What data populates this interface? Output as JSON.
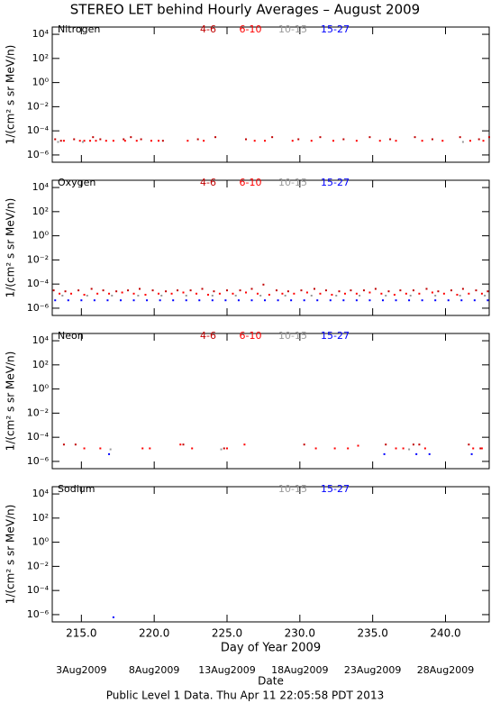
{
  "title": "STEREO LET behind Hourly Averages – August 2009",
  "footer": "Public Level 1 Data. Thu Apr 11 22:05:58 PDT 2013",
  "chart_data": [
    {
      "type": "scatter",
      "title": "Nitrogen",
      "y_label": "1/(cm² s sr MeV/n)",
      "log_y": true,
      "xlim": [
        213,
        243
      ],
      "ylim": [
        2.5e-07,
        40000
      ],
      "xticks": [
        {
          "value": 215,
          "label": "215.0"
        },
        {
          "value": 220,
          "label": "220.0"
        },
        {
          "value": 225,
          "label": "225.0"
        },
        {
          "value": 230,
          "label": "230.0"
        },
        {
          "value": 235,
          "label": "235.0"
        },
        {
          "value": 240,
          "label": "240.0"
        }
      ],
      "yticks": [
        {
          "value": 10000,
          "label": "10⁴"
        },
        {
          "value": 100,
          "label": "10²"
        },
        {
          "value": 1,
          "label": "10⁰"
        },
        {
          "value": 0.01,
          "label": "10⁻²"
        },
        {
          "value": 0.0001,
          "label": "10⁻⁴"
        },
        {
          "value": 1e-06,
          "label": "10⁻⁶"
        }
      ],
      "series": [
        {
          "name": "4-6",
          "color": "#c00000",
          "x": [
            213.2,
            213.6,
            214.5,
            215.8,
            216.3,
            217.9,
            218.4,
            219.1,
            220.6,
            223.0,
            224.2,
            226.3,
            228.1,
            229.9,
            231.4,
            233.0,
            234.8,
            236.2,
            237.9,
            239.1,
            241.0,
            242.3,
            243.0
          ],
          "values": [
            2e-05,
            1.5e-05,
            2e-05,
            3e-05,
            2e-05,
            2e-05,
            3e-05,
            2e-05,
            1.5e-05,
            2e-05,
            3e-05,
            2e-05,
            3e-05,
            2e-05,
            3e-05,
            2e-05,
            3e-05,
            2e-05,
            3e-05,
            2e-05,
            3e-05,
            2e-05,
            3e-05
          ]
        },
        {
          "name": "6-10",
          "color": "#ff0000",
          "x": [
            213.8,
            214.9,
            215.2,
            215.6,
            216.0,
            216.7,
            217.2,
            218.0,
            218.8,
            219.8,
            220.3,
            222.3,
            223.4,
            226.9,
            227.6,
            229.5,
            230.8,
            232.3,
            233.9,
            235.5,
            236.6,
            238.4,
            239.8,
            241.7,
            242.6
          ],
          "values": [
            1.5e-05,
            1.5e-05,
            1.5e-05,
            1.5e-05,
            1.5e-05,
            1.5e-05,
            1.5e-05,
            1.5e-05,
            1.5e-05,
            1.5e-05,
            1.5e-05,
            1.5e-05,
            1.5e-05,
            1.5e-05,
            1.5e-05,
            1.5e-05,
            1.5e-05,
            1.5e-05,
            1.5e-05,
            1.5e-05,
            1.5e-05,
            1.5e-05,
            1.5e-05,
            1.5e-05,
            1.5e-05
          ]
        },
        {
          "name": "10-15",
          "color": "#999999",
          "x": [
            213.4,
            215.1,
            241.2
          ],
          "values": [
            1.2e-05,
            1.2e-05,
            1.2e-05
          ]
        },
        {
          "name": "15-27",
          "color": "#0000ff",
          "x": [],
          "values": []
        }
      ]
    },
    {
      "type": "scatter",
      "title": "Oxygen",
      "y_label": "1/(cm² s sr MeV/n)",
      "log_y": true,
      "xlim": [
        213,
        243
      ],
      "ylim": [
        2.5e-07,
        40000
      ],
      "xticks": [
        {
          "value": 215,
          "label": "215.0"
        },
        {
          "value": 220,
          "label": "220.0"
        },
        {
          "value": 225,
          "label": "225.0"
        },
        {
          "value": 230,
          "label": "230.0"
        },
        {
          "value": 235,
          "label": "235.0"
        },
        {
          "value": 240,
          "label": "240.0"
        }
      ],
      "yticks": [
        {
          "value": 10000,
          "label": "10⁴"
        },
        {
          "value": 100,
          "label": "10²"
        },
        {
          "value": 1,
          "label": "10⁰"
        },
        {
          "value": 0.01,
          "label": "10⁻²"
        },
        {
          "value": 0.0001,
          "label": "10⁻⁴"
        },
        {
          "value": 1e-06,
          "label": "10⁻⁶"
        }
      ],
      "series": [
        {
          "name": "4-6",
          "color": "#c00000",
          "x": [
            213.1,
            213.9,
            214.8,
            215.7,
            216.5,
            217.4,
            218.2,
            219.0,
            219.9,
            220.8,
            221.6,
            222.5,
            223.3,
            224.1,
            225.0,
            225.9,
            226.7,
            227.5,
            228.4,
            229.2,
            230.1,
            231.0,
            231.8,
            232.7,
            233.5,
            234.4,
            235.2,
            236.1,
            236.9,
            237.8,
            238.7,
            239.5,
            240.4,
            241.2,
            242.1,
            242.9
          ],
          "values": [
            3e-05,
            2.5e-05,
            3e-05,
            4e-05,
            3e-05,
            2.5e-05,
            3e-05,
            4e-05,
            3e-05,
            2.5e-05,
            3e-05,
            3e-05,
            4e-05,
            2.5e-05,
            3e-05,
            3e-05,
            4e-05,
            9e-05,
            3e-05,
            2.5e-05,
            3e-05,
            4e-05,
            3e-05,
            2.5e-05,
            3e-05,
            3e-05,
            4e-05,
            2.5e-05,
            3e-05,
            3e-05,
            4e-05,
            2.5e-05,
            3e-05,
            4e-05,
            3e-05,
            2.5e-05
          ]
        },
        {
          "name": "6-10",
          "color": "#ff0000",
          "x": [
            213.5,
            214.3,
            215.2,
            216.1,
            216.9,
            217.8,
            218.6,
            219.4,
            220.3,
            221.2,
            222.0,
            222.9,
            223.7,
            224.5,
            225.4,
            226.3,
            227.1,
            227.9,
            228.8,
            229.6,
            230.5,
            231.4,
            232.2,
            233.1,
            233.9,
            234.8,
            235.6,
            236.5,
            237.3,
            238.2,
            239.1,
            239.9,
            240.8,
            241.6,
            242.5
          ],
          "values": [
            1.6e-05,
            1.6e-05,
            1.3e-05,
            1.6e-05,
            1.6e-05,
            2e-05,
            1.6e-05,
            1.3e-05,
            1.6e-05,
            1.6e-05,
            2e-05,
            1.6e-05,
            1.3e-05,
            1.6e-05,
            1.6e-05,
            2e-05,
            1.6e-05,
            1.3e-05,
            1.6e-05,
            1.6e-05,
            2e-05,
            1.6e-05,
            1.3e-05,
            1.6e-05,
            1.6e-05,
            2e-05,
            1.6e-05,
            1.3e-05,
            1.6e-05,
            1.6e-05,
            2e-05,
            1.6e-05,
            1.3e-05,
            1.6e-05,
            1.6e-05
          ]
        },
        {
          "name": "10-15",
          "color": "#999999",
          "x": [
            213.7,
            215.4,
            217.1,
            218.9,
            220.5,
            222.2,
            224.0,
            225.6,
            227.3,
            229.0,
            230.8,
            232.5,
            234.1,
            235.9,
            237.6,
            239.3,
            241.0,
            242.7
          ],
          "values": [
            1.1e-05,
            1.1e-05,
            1.1e-05,
            1.1e-05,
            1.1e-05,
            1.1e-05,
            1.1e-05,
            1.1e-05,
            1.1e-05,
            1.1e-05,
            1.1e-05,
            1.1e-05,
            1.1e-05,
            1.1e-05,
            1.1e-05,
            1.1e-05,
            1.1e-05,
            1.1e-05
          ]
        },
        {
          "name": "15-27",
          "color": "#0000ff",
          "x": [
            213.2,
            214.1,
            215.0,
            215.9,
            216.8,
            217.7,
            218.6,
            219.5,
            220.4,
            221.3,
            222.2,
            223.1,
            224.0,
            224.9,
            225.8,
            226.7,
            227.6,
            228.5,
            229.4,
            230.3,
            231.2,
            232.1,
            233.0,
            233.9,
            234.8,
            235.7,
            236.6,
            237.5,
            238.4,
            239.3,
            240.2,
            241.1,
            242.0,
            242.9
          ],
          "values": [
            4.5e-06,
            4.5e-06,
            4.5e-06,
            4.5e-06,
            4.5e-06,
            4.5e-06,
            4.5e-06,
            4.5e-06,
            4.5e-06,
            4.5e-06,
            4.5e-06,
            4.5e-06,
            4.5e-06,
            4.5e-06,
            4.5e-06,
            4.5e-06,
            4.5e-06,
            4.5e-06,
            4.5e-06,
            4.5e-06,
            4.5e-06,
            4.5e-06,
            4.5e-06,
            4.5e-06,
            4.5e-06,
            4.5e-06,
            4.5e-06,
            4.5e-06,
            4.5e-06,
            4.5e-06,
            4.5e-06,
            4.5e-06,
            4.5e-06,
            4.5e-06
          ]
        }
      ]
    },
    {
      "type": "scatter",
      "title": "Neon",
      "y_label": "1/(cm² s sr MeV/n)",
      "log_y": true,
      "xlim": [
        213,
        243
      ],
      "ylim": [
        2.5e-07,
        40000
      ],
      "xticks": [
        {
          "value": 215,
          "label": "215.0"
        },
        {
          "value": 220,
          "label": "220.0"
        },
        {
          "value": 225,
          "label": "225.0"
        },
        {
          "value": 230,
          "label": "230.0"
        },
        {
          "value": 235,
          "label": "235.0"
        },
        {
          "value": 240,
          "label": "240.0"
        }
      ],
      "yticks": [
        {
          "value": 10000,
          "label": "10⁴"
        },
        {
          "value": 100,
          "label": "10²"
        },
        {
          "value": 1,
          "label": "10⁰"
        },
        {
          "value": 0.01,
          "label": "10⁻²"
        },
        {
          "value": 0.0001,
          "label": "10⁻⁴"
        },
        {
          "value": 1e-06,
          "label": "10⁻⁶"
        }
      ],
      "series": [
        {
          "name": "4-6",
          "color": "#c00000",
          "x": [
            213.8,
            214.6,
            222.0,
            224.8,
            230.3,
            235.9,
            237.8,
            238.2,
            241.6,
            242.4
          ],
          "values": [
            2.5e-05,
            2.5e-05,
            2.5e-05,
            1.2e-05,
            2.5e-05,
            2.5e-05,
            2.5e-05,
            2.5e-05,
            2.5e-05,
            1.2e-05
          ]
        },
        {
          "name": "6-10",
          "color": "#ff0000",
          "x": [
            215.2,
            216.3,
            219.2,
            219.7,
            221.8,
            222.6,
            225.0,
            226.2,
            231.1,
            232.4,
            233.3,
            234.0,
            236.6,
            237.1,
            238.6,
            241.9,
            242.5
          ],
          "values": [
            1.2e-05,
            1.2e-05,
            1.2e-05,
            1.2e-05,
            2.5e-05,
            1.2e-05,
            1.2e-05,
            2.5e-05,
            1.2e-05,
            1.2e-05,
            1.2e-05,
            2e-05,
            1.2e-05,
            1.2e-05,
            1.2e-05,
            1.2e-05,
            1.2e-05
          ]
        },
        {
          "name": "10-15",
          "color": "#999999",
          "x": [
            217.0,
            224.6,
            237.5
          ],
          "values": [
            1e-05,
            1e-05,
            1e-05
          ]
        },
        {
          "name": "15-27",
          "color": "#0000ff",
          "x": [
            216.9,
            235.8,
            238.0,
            238.9,
            241.8
          ],
          "values": [
            4e-06,
            4e-06,
            4e-06,
            4e-06,
            4e-06
          ]
        }
      ]
    },
    {
      "type": "scatter",
      "title": "Sodium",
      "y_label": "1/(cm² s sr MeV/n)",
      "log_y": true,
      "xlim": [
        213,
        243
      ],
      "ylim": [
        2.5e-07,
        40000
      ],
      "xticks": [
        {
          "value": 215,
          "label": "215.0"
        },
        {
          "value": 220,
          "label": "220.0"
        },
        {
          "value": 225,
          "label": "225.0"
        },
        {
          "value": 230,
          "label": "230.0"
        },
        {
          "value": 235,
          "label": "235.0"
        },
        {
          "value": 240,
          "label": "240.0"
        }
      ],
      "yticks": [
        {
          "value": 10000,
          "label": "10⁴"
        },
        {
          "value": 100,
          "label": "10²"
        },
        {
          "value": 1,
          "label": "10⁰"
        },
        {
          "value": 0.01,
          "label": "10⁻²"
        },
        {
          "value": 0.0001,
          "label": "10⁻⁴"
        },
        {
          "value": 1e-06,
          "label": "10⁻⁶"
        }
      ],
      "x_label": "Day of Year 2009",
      "date_label": "Date",
      "date_ticks": [
        {
          "value": 215,
          "label": "3Aug2009"
        },
        {
          "value": 220,
          "label": "8Aug2009"
        },
        {
          "value": 225,
          "label": "13Aug2009"
        },
        {
          "value": 230,
          "label": "18Aug2009"
        },
        {
          "value": 235,
          "label": "23Aug2009"
        },
        {
          "value": 240,
          "label": "28Aug2009"
        }
      ],
      "series": [
        {
          "name": "10-15",
          "color": "#999999",
          "x": [],
          "values": []
        },
        {
          "name": "15-27",
          "color": "#0000ff",
          "x": [
            217.2
          ],
          "values": [
            6e-07
          ]
        }
      ]
    }
  ]
}
